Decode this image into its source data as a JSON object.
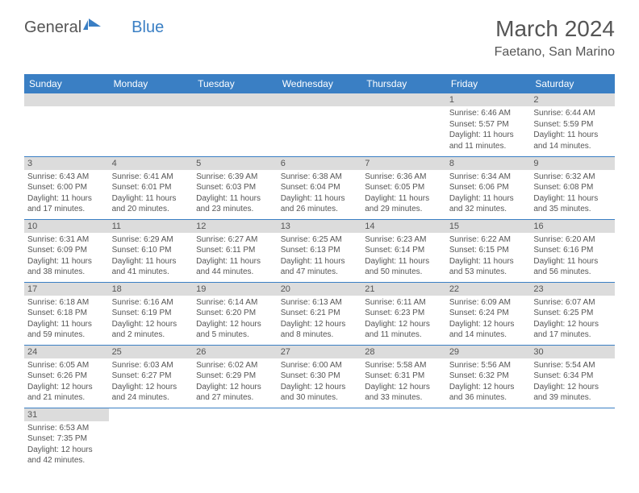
{
  "logo": {
    "text1": "General",
    "text2": "Blue"
  },
  "title": "March 2024",
  "location": "Faetano, San Marino",
  "headers": [
    "Sunday",
    "Monday",
    "Tuesday",
    "Wednesday",
    "Thursday",
    "Friday",
    "Saturday"
  ],
  "colors": {
    "header_bg": "#3a7fc4",
    "header_text": "#ffffff",
    "daynum_bg": "#dcdcdc",
    "border": "#3a7fc4",
    "text": "#555555",
    "background": "#ffffff"
  },
  "typography": {
    "title_fontsize": 28,
    "location_fontsize": 16,
    "header_fontsize": 12,
    "daynum_fontsize": 11,
    "cell_fontsize": 10
  },
  "weeks": [
    [
      null,
      null,
      null,
      null,
      null,
      {
        "n": "1",
        "sunrise": "6:46 AM",
        "sunset": "5:57 PM",
        "dh": "11",
        "dm": "11"
      },
      {
        "n": "2",
        "sunrise": "6:44 AM",
        "sunset": "5:59 PM",
        "dh": "11",
        "dm": "14"
      }
    ],
    [
      {
        "n": "3",
        "sunrise": "6:43 AM",
        "sunset": "6:00 PM",
        "dh": "11",
        "dm": "17"
      },
      {
        "n": "4",
        "sunrise": "6:41 AM",
        "sunset": "6:01 PM",
        "dh": "11",
        "dm": "20"
      },
      {
        "n": "5",
        "sunrise": "6:39 AM",
        "sunset": "6:03 PM",
        "dh": "11",
        "dm": "23"
      },
      {
        "n": "6",
        "sunrise": "6:38 AM",
        "sunset": "6:04 PM",
        "dh": "11",
        "dm": "26"
      },
      {
        "n": "7",
        "sunrise": "6:36 AM",
        "sunset": "6:05 PM",
        "dh": "11",
        "dm": "29"
      },
      {
        "n": "8",
        "sunrise": "6:34 AM",
        "sunset": "6:06 PM",
        "dh": "11",
        "dm": "32"
      },
      {
        "n": "9",
        "sunrise": "6:32 AM",
        "sunset": "6:08 PM",
        "dh": "11",
        "dm": "35"
      }
    ],
    [
      {
        "n": "10",
        "sunrise": "6:31 AM",
        "sunset": "6:09 PM",
        "dh": "11",
        "dm": "38"
      },
      {
        "n": "11",
        "sunrise": "6:29 AM",
        "sunset": "6:10 PM",
        "dh": "11",
        "dm": "41"
      },
      {
        "n": "12",
        "sunrise": "6:27 AM",
        "sunset": "6:11 PM",
        "dh": "11",
        "dm": "44"
      },
      {
        "n": "13",
        "sunrise": "6:25 AM",
        "sunset": "6:13 PM",
        "dh": "11",
        "dm": "47"
      },
      {
        "n": "14",
        "sunrise": "6:23 AM",
        "sunset": "6:14 PM",
        "dh": "11",
        "dm": "50"
      },
      {
        "n": "15",
        "sunrise": "6:22 AM",
        "sunset": "6:15 PM",
        "dh": "11",
        "dm": "53"
      },
      {
        "n": "16",
        "sunrise": "6:20 AM",
        "sunset": "6:16 PM",
        "dh": "11",
        "dm": "56"
      }
    ],
    [
      {
        "n": "17",
        "sunrise": "6:18 AM",
        "sunset": "6:18 PM",
        "dh": "11",
        "dm": "59"
      },
      {
        "n": "18",
        "sunrise": "6:16 AM",
        "sunset": "6:19 PM",
        "dh": "12",
        "dm": "2"
      },
      {
        "n": "19",
        "sunrise": "6:14 AM",
        "sunset": "6:20 PM",
        "dh": "12",
        "dm": "5"
      },
      {
        "n": "20",
        "sunrise": "6:13 AM",
        "sunset": "6:21 PM",
        "dh": "12",
        "dm": "8"
      },
      {
        "n": "21",
        "sunrise": "6:11 AM",
        "sunset": "6:23 PM",
        "dh": "12",
        "dm": "11"
      },
      {
        "n": "22",
        "sunrise": "6:09 AM",
        "sunset": "6:24 PM",
        "dh": "12",
        "dm": "14"
      },
      {
        "n": "23",
        "sunrise": "6:07 AM",
        "sunset": "6:25 PM",
        "dh": "12",
        "dm": "17"
      }
    ],
    [
      {
        "n": "24",
        "sunrise": "6:05 AM",
        "sunset": "6:26 PM",
        "dh": "12",
        "dm": "21"
      },
      {
        "n": "25",
        "sunrise": "6:03 AM",
        "sunset": "6:27 PM",
        "dh": "12",
        "dm": "24"
      },
      {
        "n": "26",
        "sunrise": "6:02 AM",
        "sunset": "6:29 PM",
        "dh": "12",
        "dm": "27"
      },
      {
        "n": "27",
        "sunrise": "6:00 AM",
        "sunset": "6:30 PM",
        "dh": "12",
        "dm": "30"
      },
      {
        "n": "28",
        "sunrise": "5:58 AM",
        "sunset": "6:31 PM",
        "dh": "12",
        "dm": "33"
      },
      {
        "n": "29",
        "sunrise": "5:56 AM",
        "sunset": "6:32 PM",
        "dh": "12",
        "dm": "36"
      },
      {
        "n": "30",
        "sunrise": "5:54 AM",
        "sunset": "6:34 PM",
        "dh": "12",
        "dm": "39"
      }
    ],
    [
      {
        "n": "31",
        "sunrise": "6:53 AM",
        "sunset": "7:35 PM",
        "dh": "12",
        "dm": "42"
      },
      null,
      null,
      null,
      null,
      null,
      null
    ]
  ],
  "labels": {
    "sunrise_prefix": "Sunrise: ",
    "sunset_prefix": "Sunset: ",
    "daylight_prefix": "Daylight: ",
    "hours_word": " hours",
    "and_word": "and ",
    "minutes_word": " minutes."
  }
}
